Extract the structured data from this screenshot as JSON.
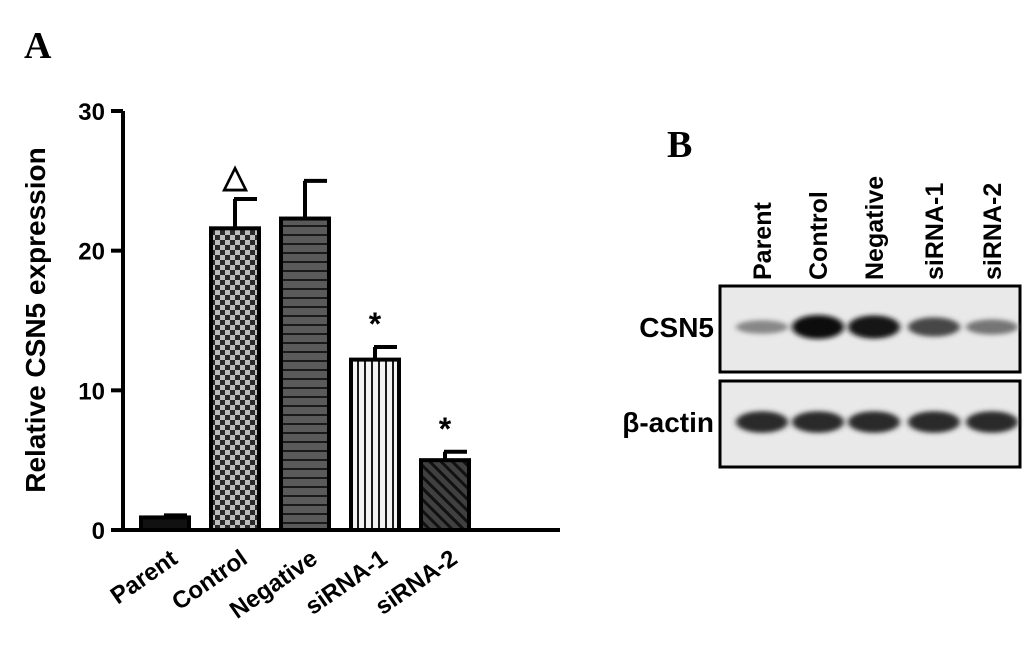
{
  "panel_a_label": "A",
  "panel_b_label": "B",
  "chart_data": {
    "type": "bar",
    "ylabel": "Relative CSN5 expression",
    "ylim": [
      0,
      30
    ],
    "yticks": [
      "0",
      "10",
      "20",
      "30"
    ],
    "categories": [
      "Parent",
      "Control",
      "Negative",
      "siRNA-1",
      "siRNA-2"
    ],
    "values": [
      0.9,
      21.6,
      22.3,
      12.2,
      5.0
    ],
    "errors": [
      0.15,
      2.1,
      2.7,
      0.9,
      0.6
    ],
    "markers": [
      "",
      "△",
      "",
      "*",
      "*"
    ],
    "patterns": [
      "solid-black",
      "checker",
      "horizontal-stripes",
      "vertical-stripes",
      "diagonal-stripes"
    ]
  },
  "blot": {
    "lanes": [
      "Parent",
      "Control",
      "Negative",
      "siRNA-1",
      "siRNA-2"
    ],
    "rows": [
      {
        "label": "CSN5",
        "intensities": [
          0.35,
          1.0,
          0.95,
          0.7,
          0.45
        ]
      },
      {
        "label": "β-actin",
        "intensities": [
          0.85,
          0.85,
          0.85,
          0.85,
          0.85
        ]
      }
    ]
  }
}
